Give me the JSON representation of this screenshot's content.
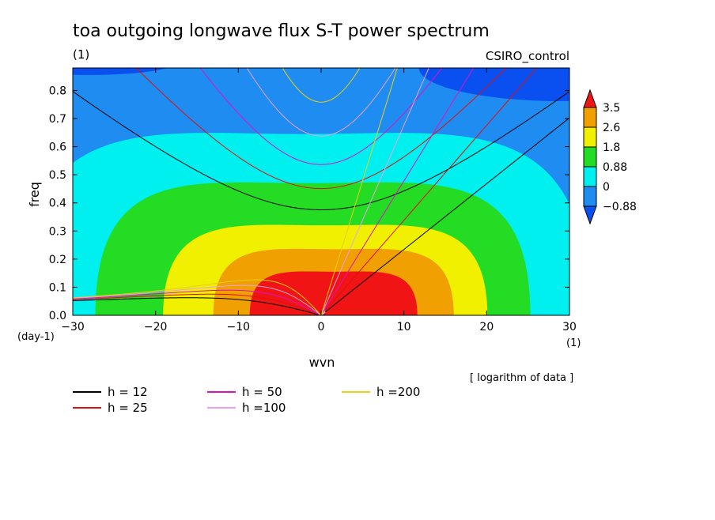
{
  "chart_data": {
    "type": "contour",
    "title": "toa outgoing longwave flux S-T power spectrum",
    "subtitle_left": "(1)",
    "subtitle_right": "CSIRO_control",
    "xlabel": "wvn",
    "ylabel": "freq",
    "x_unit": "(1)",
    "y_unit": "(day-1)",
    "note": "[ logarithm of data ]",
    "xlim": [
      -30,
      30
    ],
    "ylim": [
      0,
      0.88
    ],
    "xticks": [
      -30,
      -20,
      -10,
      0,
      10,
      20,
      30
    ],
    "yticks": [
      0.0,
      0.1,
      0.2,
      0.3,
      0.4,
      0.5,
      0.6,
      0.7,
      0.8
    ],
    "contour_levels": [
      -0.88,
      0,
      0.88,
      1.8,
      2.6,
      3.5
    ],
    "level_colors": [
      "#0a50f0",
      "#1e8cf0",
      "#00f0f0",
      "#23dc23",
      "#f0f000",
      "#f0a000",
      "#f01414"
    ],
    "colorbar_labels": [
      "3.5",
      "2.6",
      "1.8",
      "0.88",
      "0",
      "-0.88"
    ],
    "dispersion_curves": [
      {
        "label": "h = 12",
        "h": 12,
        "color": "#000000"
      },
      {
        "label": "h = 25",
        "h": 25,
        "color": "#e01010"
      },
      {
        "label": "h = 50",
        "h": 50,
        "color": "#e010c8"
      },
      {
        "label": "h =100",
        "h": 100,
        "color": "#e8a0e8"
      },
      {
        "label": "h =200",
        "h": 200,
        "color": "#e8d010"
      }
    ]
  }
}
